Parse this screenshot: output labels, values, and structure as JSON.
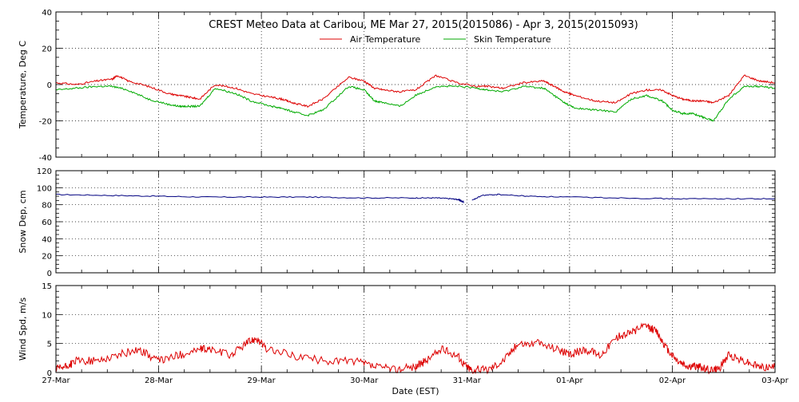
{
  "title": "CREST Meteo Data at Caribou, ME   Mar 27, 2015(2015086) - Apr  3, 2015(2015093)",
  "colors": {
    "air": "#dd0000",
    "skin": "#00aa00",
    "snow": "#000080",
    "axis": "#000000"
  },
  "chart_data": [
    {
      "type": "line",
      "ylabel": "Temperature, Deg C",
      "ylim": [
        -40,
        40
      ],
      "yticks": [
        "40",
        "20",
        "0",
        "-20",
        "-40"
      ],
      "xlim": [
        0,
        7
      ],
      "grid": true,
      "legend": {
        "placement": "top",
        "entries": [
          "Air Temperature",
          "Skin Temperature"
        ]
      },
      "series": [
        {
          "name": "Air Temperature",
          "color": "#dd0000",
          "x": [
            0,
            0.2,
            0.4,
            0.55,
            0.6,
            0.7,
            0.9,
            1.1,
            1.2,
            1.3,
            1.4,
            1.55,
            1.75,
            1.9,
            2.1,
            2.2,
            2.3,
            2.45,
            2.6,
            2.85,
            3.0,
            3.1,
            3.2,
            3.35,
            3.5,
            3.7,
            3.9,
            4.1,
            4.2,
            4.35,
            4.55,
            4.75,
            4.85,
            4.95,
            5.05,
            5.25,
            5.45,
            5.6,
            5.75,
            5.9,
            6.0,
            6.1,
            6.2,
            6.3,
            6.4,
            6.55,
            6.7,
            6.85,
            7.0
          ],
          "values": [
            1,
            0,
            2,
            3,
            5,
            2,
            -1,
            -5,
            -6,
            -7,
            -8,
            0,
            -2,
            -5,
            -7,
            -8,
            -10,
            -12,
            -8,
            4,
            2,
            -2,
            -3,
            -4,
            -3,
            5,
            1,
            -1,
            -1,
            -2,
            1,
            2,
            -1,
            -4,
            -6,
            -9,
            -10,
            -5,
            -3,
            -3,
            -6,
            -8,
            -9,
            -9,
            -10,
            -6,
            5,
            2,
            1
          ]
        },
        {
          "name": "Skin Temperature",
          "color": "#00aa00",
          "x": [
            0,
            0.2,
            0.4,
            0.55,
            0.7,
            0.9,
            1.1,
            1.2,
            1.3,
            1.4,
            1.55,
            1.75,
            1.9,
            2.1,
            2.2,
            2.3,
            2.45,
            2.6,
            2.85,
            3.0,
            3.1,
            3.2,
            3.35,
            3.5,
            3.7,
            3.9,
            4.1,
            4.2,
            4.35,
            4.55,
            4.75,
            4.85,
            4.95,
            5.05,
            5.25,
            5.45,
            5.6,
            5.75,
            5.9,
            6.0,
            6.1,
            6.2,
            6.3,
            6.4,
            6.55,
            6.7,
            6.85,
            7.0
          ],
          "values": [
            -3,
            -2,
            -1,
            -1,
            -3,
            -8,
            -11,
            -12,
            -12,
            -12,
            -2,
            -5,
            -9,
            -12,
            -13,
            -15,
            -17,
            -14,
            -1,
            -3,
            -9,
            -10,
            -12,
            -6,
            -1,
            -1,
            -2,
            -3,
            -4,
            -1,
            -2,
            -6,
            -10,
            -13,
            -14,
            -15,
            -8,
            -6,
            -9,
            -14,
            -16,
            -16,
            -18,
            -20,
            -8,
            -1,
            -1,
            -2
          ]
        }
      ]
    },
    {
      "type": "line",
      "ylabel": "Snow Dep, cm",
      "ylim": [
        0,
        120
      ],
      "yticks": [
        "120",
        "100",
        "80",
        "60",
        "40",
        "20",
        "0"
      ],
      "xlim": [
        0,
        7
      ],
      "grid": true,
      "series": [
        {
          "color": "#000080",
          "segments": [
            {
              "x": [
                0,
                0.5,
                1.0,
                1.5,
                2.0,
                2.5,
                3.0,
                3.5,
                3.7,
                3.85,
                3.92,
                3.95,
                3.97
              ],
              "values": [
                92,
                91,
                90,
                89,
                89,
                89,
                88,
                88,
                88,
                87,
                86,
                84,
                83
              ]
            },
            {
              "x": [
                4.05,
                4.15,
                4.3,
                4.6,
                5.0,
                5.5,
                6.0,
                6.5,
                7.0
              ],
              "values": [
                85,
                91,
                92,
                90,
                89,
                88,
                87,
                87,
                87
              ]
            }
          ]
        }
      ]
    },
    {
      "type": "line",
      "ylabel": "Wind Spd, m/s",
      "xlabel": "Date (EST)",
      "ylim": [
        0,
        15
      ],
      "yticks": [
        "15",
        "10",
        "5",
        "0"
      ],
      "xlim": [
        0,
        7
      ],
      "xticks": [
        "27-Mar",
        "28-Mar",
        "29-Mar",
        "30-Mar",
        "31-Mar",
        "01-Apr",
        "02-Apr",
        "03-Apr"
      ],
      "grid": true,
      "series": [
        {
          "color": "#dd0000",
          "x": [
            0,
            0.1,
            0.2,
            0.4,
            0.6,
            0.8,
            1.0,
            1.2,
            1.4,
            1.5,
            1.7,
            1.85,
            1.95,
            2.05,
            2.3,
            2.6,
            2.9,
            3.1,
            3.3,
            3.5,
            3.6,
            3.75,
            3.9,
            4.0,
            4.05,
            4.2,
            4.35,
            4.5,
            4.7,
            4.9,
            5.0,
            5.15,
            5.3,
            5.45,
            5.6,
            5.75,
            5.85,
            5.95,
            6.05,
            6.15,
            6.25,
            6.35,
            6.45,
            6.55,
            6.7,
            6.85,
            7.0
          ],
          "values": [
            0.5,
            1,
            2,
            2,
            3,
            4,
            2,
            3,
            4,
            4,
            3,
            5,
            6,
            4,
            3,
            2,
            2,
            1,
            0.5,
            1,
            2,
            4,
            3,
            1,
            0.5,
            0.5,
            2,
            5,
            5,
            4,
            3,
            4,
            3,
            6,
            7,
            8,
            7,
            4,
            2,
            1,
            1,
            0.5,
            0.5,
            3,
            2,
            1,
            1
          ]
        }
      ]
    }
  ]
}
